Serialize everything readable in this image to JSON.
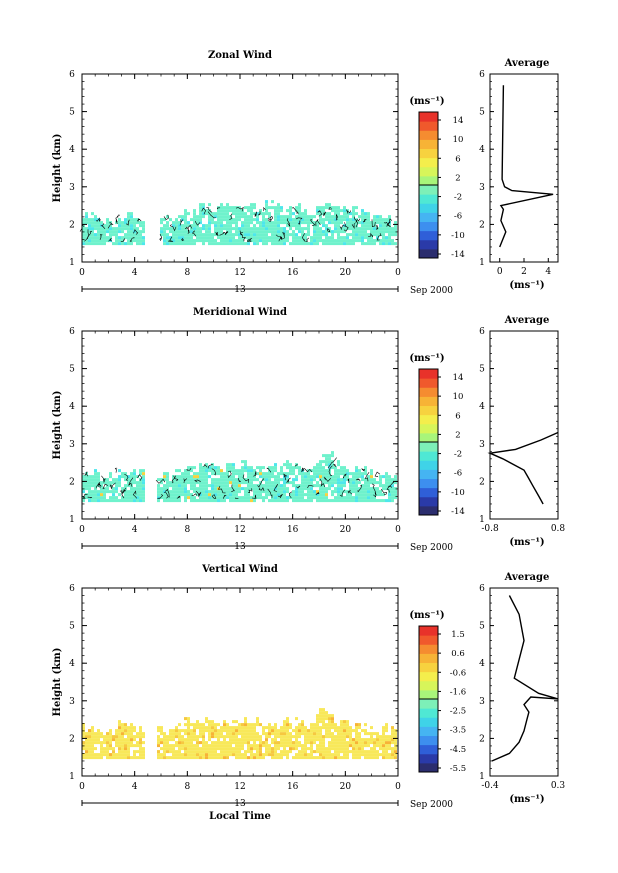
{
  "colors": {
    "colorbar": [
      "#2b2d6e",
      "#2a3aa8",
      "#2f5fd8",
      "#3d8fef",
      "#45b4f2",
      "#3fd3e8",
      "#4fe8d4",
      "#7df0b8",
      "#a8f57a",
      "#d7f55a",
      "#f4ee4c",
      "#f7d23f",
      "#f7b336",
      "#f58c30",
      "#f0592c",
      "#e8322a"
    ],
    "zonal_fill": "#6ff2cc",
    "zonal_fill_alt": "#4de7ec",
    "meridional_fill": "#6ff2cc",
    "vertical_fill": "#f8e85a",
    "vertical_fill_alt": "#f6c840"
  },
  "xaxis": {
    "ticks": [
      "0",
      "4",
      "8",
      "12",
      "16",
      "20",
      "0"
    ],
    "date_label": "Sep 2000",
    "day": "13",
    "xlabel": "Local Time"
  },
  "panels": [
    {
      "title": "Zonal Wind",
      "ylabel": "Height (km)",
      "yticks": [
        "1",
        "2",
        "3",
        "4",
        "5",
        "6"
      ],
      "unit": "(ms⁻¹)",
      "colorbar_labels": [
        "14",
        "10",
        "6",
        "2",
        "-2",
        "-6",
        "-10",
        "-14"
      ],
      "side_title": "Average",
      "side_xticks": [
        "0",
        "2",
        "4"
      ],
      "side_unit": "(ms⁻¹)"
    },
    {
      "title": "Meridional Wind",
      "ylabel": "Height (km)",
      "yticks": [
        "1",
        "2",
        "3",
        "4",
        "5",
        "6"
      ],
      "unit": "(ms⁻¹)",
      "colorbar_labels": [
        "14",
        "10",
        "6",
        "2",
        "-2",
        "-6",
        "-10",
        "-14"
      ],
      "side_title": "Average",
      "side_xticks": [
        "-0.8",
        "0.8"
      ],
      "side_unit": "(ms⁻¹)"
    },
    {
      "title": "Vertical Wind",
      "ylabel": "Height (km)",
      "yticks": [
        "1",
        "2",
        "3",
        "4",
        "5",
        "6"
      ],
      "unit": "(ms⁻¹)",
      "colorbar_labels": [
        "1.5",
        "0.6",
        "-0.6",
        "-1.6",
        "-2.5",
        "-3.5",
        "-4.5",
        "-5.5"
      ],
      "side_title": "Average",
      "side_xticks": [
        "-0.4",
        "0.3"
      ],
      "side_unit": "(ms⁻¹)"
    }
  ],
  "chart_data": [
    {
      "type": "heatmap",
      "title": "Zonal Wind",
      "ylabel": "Height (km)",
      "xlabel": "",
      "xlim": [
        0,
        24
      ],
      "ylim": [
        1,
        6
      ],
      "clim": [
        -14,
        14
      ],
      "data_top_km": [
        2.3,
        2.1,
        2.3,
        2.2,
        2.3,
        2.2,
        2.4,
        2.5,
        2.5,
        2.5,
        2.5,
        2.6,
        2.5,
        2.4,
        2.6,
        2.5,
        2.4,
        2.3,
        2.2
      ],
      "data_gap_hours": [
        4.7,
        5.7
      ],
      "dominant_value": 0,
      "avg_profile": {
        "x": [
          0.0,
          0.5,
          0.1,
          0.3,
          0.1,
          4.4,
          1.0,
          0.4,
          0.2,
          0.3
        ],
        "y": [
          1.4,
          1.8,
          2.1,
          2.4,
          2.5,
          2.8,
          2.9,
          3.0,
          3.2,
          5.7
        ]
      }
    },
    {
      "type": "heatmap",
      "title": "Meridional Wind",
      "ylabel": "Height (km)",
      "xlabel": "",
      "xlim": [
        0,
        24
      ],
      "ylim": [
        1,
        6
      ],
      "clim": [
        -14,
        14
      ],
      "data_top_km": [
        2.3,
        2.2,
        2.4,
        2.3,
        2.2,
        2.3,
        2.4,
        2.5,
        2.4,
        2.5,
        2.5,
        2.4,
        2.5,
        2.4,
        2.7,
        2.5,
        2.4,
        2.3,
        2.2
      ],
      "data_gap_hours": [
        4.7,
        5.6
      ],
      "dominant_value": 0,
      "avg_profile": {
        "x": [
          0.45,
          0.35,
          0.2,
          0.1,
          0.0,
          -0.5,
          -0.8,
          -0.2,
          0.4,
          0.8
        ],
        "y": [
          1.4,
          1.6,
          1.9,
          2.1,
          2.3,
          2.6,
          2.75,
          2.85,
          3.1,
          3.3
        ]
      }
    },
    {
      "type": "heatmap",
      "title": "Vertical Wind",
      "ylabel": "Height (km)",
      "xlabel": "Local Time",
      "xlim": [
        0,
        24
      ],
      "ylim": [
        1,
        6
      ],
      "clim": [
        -5.5,
        1.5
      ],
      "data_top_km": [
        2.3,
        2.2,
        2.4,
        2.3,
        2.3,
        2.4,
        2.5,
        2.5,
        2.4,
        2.5,
        2.5,
        2.4,
        2.5,
        2.4,
        2.8,
        2.5,
        2.4,
        2.3,
        2.4
      ],
      "data_gap_hours": [
        4.7,
        5.5
      ],
      "dominant_value": 0.3,
      "avg_profile": {
        "x": [
          -0.38,
          -0.2,
          -0.1,
          -0.05,
          -0.02,
          0.0,
          -0.05,
          0.02,
          0.3,
          0.1,
          -0.15,
          -0.05,
          -0.1,
          -0.2
        ],
        "y": [
          1.4,
          1.6,
          1.9,
          2.2,
          2.5,
          2.7,
          2.9,
          3.1,
          3.05,
          3.2,
          3.6,
          4.6,
          5.3,
          5.8
        ]
      }
    }
  ]
}
